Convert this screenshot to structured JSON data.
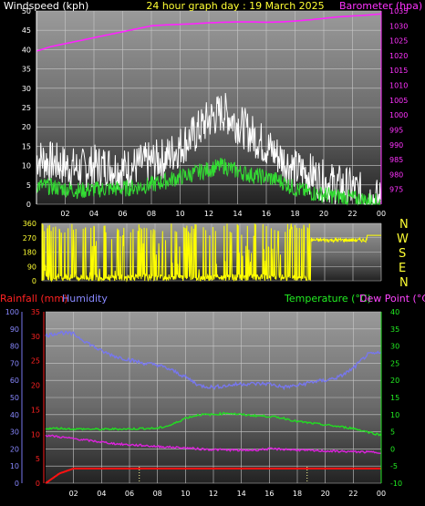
{
  "chart_data": [
    {
      "type": "line",
      "title": "24 hour graph day : 19 March 2025",
      "ylabel": "Windspeed (kph)",
      "y2label": "Barometer (hpa)",
      "ylim": [
        0,
        50
      ],
      "y2lim": [
        970,
        1035
      ],
      "yticks": [
        "0",
        "5",
        "10",
        "15",
        "20",
        "25",
        "30",
        "35",
        "40",
        "45",
        "50"
      ],
      "y2ticks": [
        "975",
        "980",
        "985",
        "990",
        "995",
        "1000",
        "1005",
        "1010",
        "1015",
        "1020",
        "1025",
        "1030",
        "1035"
      ],
      "xticks": [
        "02",
        "04",
        "06",
        "08",
        "10",
        "12",
        "14",
        "16",
        "18",
        "20",
        "22",
        "00"
      ],
      "hours": [
        0,
        1,
        2,
        3,
        4,
        5,
        6,
        7,
        8,
        9,
        10,
        11,
        12,
        13,
        14,
        15,
        16,
        17,
        18,
        19,
        20,
        21,
        22,
        23,
        24
      ],
      "series": [
        {
          "key": "gust",
          "color": "#ffffff",
          "axis": "left",
          "values": [
            12,
            11,
            10,
            9,
            10,
            10,
            9,
            10,
            11,
            12,
            15,
            18,
            22,
            24,
            21,
            18,
            15,
            12,
            9,
            8,
            6,
            5,
            4,
            2,
            1
          ],
          "noise": 5.5
        },
        {
          "key": "wind",
          "color": "#33dd33",
          "axis": "left",
          "values": [
            5,
            4.5,
            4,
            3.5,
            3.8,
            4,
            4,
            4.5,
            5,
            6,
            7,
            8,
            9,
            10,
            8.5,
            7.5,
            7,
            6,
            4,
            3,
            2.5,
            2,
            1.5,
            1,
            0.5
          ],
          "noise": 2.2
        },
        {
          "key": "barometer",
          "color": "#ff22ff",
          "axis": "right",
          "values": [
            1021.5,
            1023,
            1024,
            1025,
            1026,
            1027,
            1028,
            1029,
            1030,
            1030.3,
            1030.5,
            1030.7,
            1031,
            1031.2,
            1031.3,
            1031.3,
            1031.2,
            1031.3,
            1031.6,
            1032,
            1032.5,
            1033,
            1033.3,
            1033.6,
            1034
          ],
          "noise": 0
        }
      ]
    },
    {
      "type": "line",
      "ylim": [
        0,
        360
      ],
      "yticks": [
        "0",
        "90",
        "180",
        "270",
        "360"
      ],
      "xticks": [
        "02",
        "04",
        "06",
        "08",
        "10",
        "12",
        "14",
        "16",
        "18",
        "20",
        "22",
        "00"
      ],
      "compass_labels": [
        "N",
        "W",
        "S",
        "E",
        "N"
      ],
      "series": [
        {
          "key": "direction",
          "color": "#ffff00",
          "axis": "left",
          "values": []
        }
      ]
    },
    {
      "type": "line",
      "labels": {
        "rainfall": "Rainfall (mm)",
        "humidity": "Humidity",
        "temperature": "Temperature (°C)",
        "dewpoint": "Dew Point (°C)"
      },
      "humidity_ticks": [
        "0",
        "10",
        "20",
        "30",
        "40",
        "50",
        "60",
        "70",
        "80",
        "90",
        "100"
      ],
      "rain_ticks": [
        "0",
        "5",
        "10",
        "15",
        "20",
        "25",
        "30",
        "35"
      ],
      "temp_ticks": [
        "-10",
        "-5",
        "0",
        "5",
        "10",
        "15",
        "20",
        "25",
        "30",
        "35",
        "40"
      ],
      "xticks": [
        "02",
        "04",
        "06",
        "08",
        "10",
        "12",
        "14",
        "16",
        "18",
        "20",
        "22",
        "00"
      ],
      "humidity_lim": [
        0,
        100
      ],
      "temp_lim": [
        -10,
        40
      ],
      "hours": [
        0,
        1,
        2,
        3,
        4,
        5,
        6,
        7,
        8,
        9,
        10,
        11,
        12,
        13,
        14,
        15,
        16,
        17,
        18,
        19,
        20,
        21,
        22,
        23,
        24
      ],
      "series": [
        {
          "key": "humidity",
          "color": "#7777ee",
          "axis": "humidity",
          "values": [
            86,
            88,
            87,
            82,
            77,
            74,
            72,
            70,
            69,
            66,
            62,
            57,
            56,
            57,
            58,
            58,
            58,
            56,
            57,
            59,
            60,
            62,
            67,
            75,
            76
          ]
        },
        {
          "key": "temperature",
          "color": "#22dd22",
          "axis": "temp",
          "values": [
            6,
            6,
            5.8,
            5.8,
            5.7,
            5.8,
            5.8,
            6,
            6,
            7,
            9,
            10,
            10,
            10.5,
            10,
            9.7,
            9.5,
            9,
            8,
            7.5,
            7,
            6.5,
            6,
            5,
            4
          ]
        },
        {
          "key": "dewpoint",
          "color": "#dd22dd",
          "axis": "temp",
          "values": [
            4,
            3.5,
            3,
            2.5,
            2,
            1.5,
            1.2,
            1,
            0.7,
            0.5,
            0.3,
            0,
            -0.2,
            -0.3,
            -0.4,
            -0.3,
            0,
            -0.1,
            -0.3,
            -0.5,
            -0.6,
            -0.7,
            -0.8,
            -0.9,
            -1
          ]
        },
        {
          "key": "rainfall",
          "color": "#ff1111",
          "axis": "rain",
          "values": [
            0,
            2,
            3,
            3,
            3,
            3,
            3,
            3,
            3,
            3,
            3,
            3,
            3,
            3,
            3,
            3,
            3,
            3,
            3,
            3,
            3,
            3,
            3,
            3,
            3
          ]
        }
      ],
      "markers_hours": [
        6.7,
        18.7
      ]
    }
  ]
}
